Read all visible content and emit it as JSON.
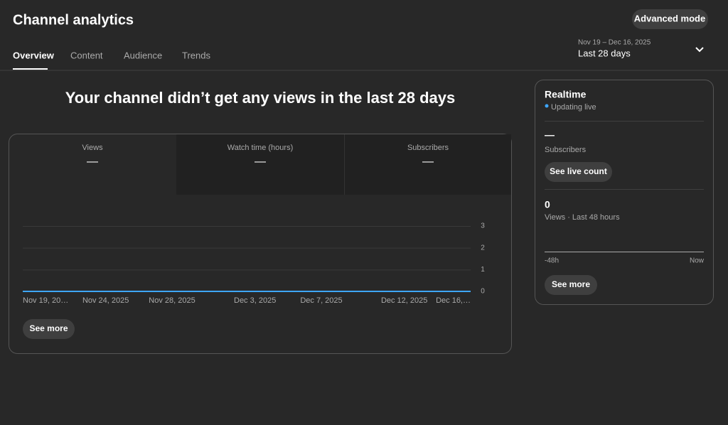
{
  "header": {
    "title": "Channel analytics",
    "advanced_button": "Advanced mode"
  },
  "tabs": [
    "Overview",
    "Content",
    "Audience",
    "Trends"
  ],
  "date_range": {
    "dates": "Nov 19 – Dec 16, 2025",
    "label": "Last 28 days"
  },
  "headline": "Your channel didn’t get any views in the last 28 days",
  "metrics": [
    {
      "name": "Views",
      "value": "—"
    },
    {
      "name": "Watch time (hours)",
      "value": "—"
    },
    {
      "name": "Subscribers",
      "value": "—"
    }
  ],
  "see_more": "See more",
  "chart_data": {
    "type": "line",
    "categories": [
      "Nov 19, 20…",
      null,
      null,
      null,
      null,
      "Nov 24, 2025",
      null,
      null,
      null,
      "Nov 28, 2025",
      null,
      null,
      null,
      null,
      "Dec 3, 2025",
      null,
      null,
      null,
      "Dec 7, 2025",
      null,
      null,
      null,
      null,
      "Dec 12, 2025",
      null,
      null,
      null,
      "Dec 16,…"
    ],
    "values": [
      0,
      0,
      0,
      0,
      0,
      0,
      0,
      0,
      0,
      0,
      0,
      0,
      0,
      0,
      0,
      0,
      0,
      0,
      0,
      0,
      0,
      0,
      0,
      0,
      0,
      0,
      0,
      0
    ],
    "color": "#3ea6ff",
    "ylim": [
      0,
      3
    ],
    "yticks": [
      0,
      1,
      2,
      3
    ],
    "grid": true,
    "y_axis_side": "right"
  },
  "realtime": {
    "title": "Realtime",
    "status": "Updating live",
    "subscribers_value": "—",
    "subscribers_label": "Subscribers",
    "live_button": "See live count",
    "views_value": 0,
    "views_label": "Views · Last 48 hours",
    "axis_start": "-48h",
    "axis_end": "Now",
    "see_more": "See more"
  }
}
